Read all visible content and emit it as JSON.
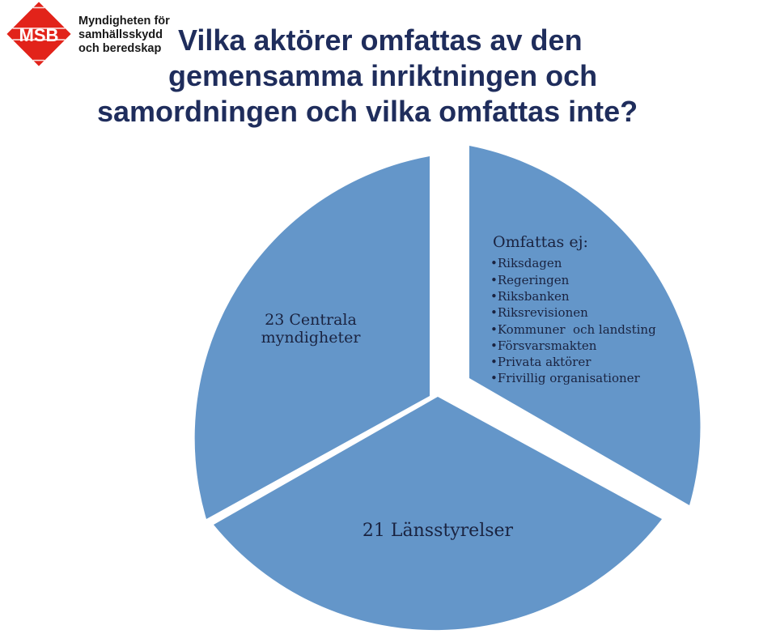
{
  "logo": {
    "badge_text": "MSB",
    "org_lines": [
      "Myndigheten för",
      "samhällsskydd",
      "och beredskap"
    ],
    "badge_color": "#e2231a"
  },
  "title": {
    "lines": [
      "Vilka aktörer omfattas av den",
      "gemensamma inriktningen och",
      "samordningen och vilka omfattas inte?"
    ],
    "color": "#1f2d5c"
  },
  "diagram": {
    "segment_color": "#6496c9",
    "segments": [
      {
        "label_lines": [
          "23 Centrala",
          "myndigheter"
        ]
      },
      {
        "label_lines": [
          "21 Länsstyrelser"
        ]
      },
      {
        "heading": "Omfattas ej:",
        "items": [
          "Riksdagen",
          "Regeringen",
          "Riksbanken",
          "Riksrevisionen",
          "Kommuner  och landsting",
          "Försvarsmakten",
          "Privata aktörer",
          "Frivillig organisationer"
        ]
      }
    ]
  }
}
